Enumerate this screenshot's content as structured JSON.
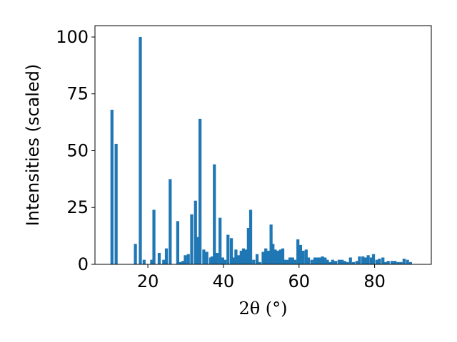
{
  "chart_data": {
    "type": "bar",
    "title": "",
    "xlabel": "2θ (°)",
    "ylabel": "Intensities (scaled)",
    "xlim": [
      6,
      95
    ],
    "ylim": [
      0,
      105
    ],
    "xticks": [
      20,
      40,
      60,
      80
    ],
    "yticks": [
      0,
      25,
      50,
      75,
      100
    ],
    "bar_color": "#1f77b4",
    "grid": false,
    "x": [
      10.5,
      11.6,
      16.7,
      18.0,
      19.0,
      21.0,
      21.6,
      23.0,
      24.2,
      24.9,
      25.9,
      27.9,
      28.7,
      29.3,
      29.9,
      30.7,
      31.6,
      32.6,
      33.1,
      33.8,
      34.8,
      35.6,
      36.6,
      37.0,
      37.6,
      38.3,
      39.1,
      39.8,
      40.4,
      41.2,
      42.1,
      42.7,
      43.3,
      44.1,
      44.7,
      45.3,
      45.9,
      46.6,
      47.2,
      48.0,
      48.9,
      49.6,
      50.5,
      51.2,
      51.9,
      52.6,
      53.1,
      53.7,
      54.4,
      55.1,
      55.7,
      56.3,
      56.9,
      57.6,
      58.3,
      58.9,
      59.7,
      60.4,
      61.1,
      61.9,
      62.5,
      63.4,
      64.2,
      64.9,
      65.5,
      66.2,
      66.9,
      67.5,
      68.2,
      68.9,
      69.7,
      70.6,
      71.4,
      72.1,
      72.8,
      73.6,
      74.4,
      75.3,
      76.0,
      76.9,
      77.6,
      78.3,
      79.1,
      79.7,
      80.6,
      81.3,
      82.2,
      82.9,
      83.6,
      84.6,
      85.4,
      86.2,
      87.0,
      87.8,
      88.7,
      89.5
    ],
    "values": [
      68,
      53,
      9,
      100,
      2,
      2,
      24,
      5,
      2,
      7,
      37.5,
      19,
      1,
      1.5,
      4,
      4.5,
      22,
      28,
      12,
      64,
      6.5,
      5.5,
      3,
      3.5,
      44,
      5,
      20.5,
      3,
      2,
      13,
      11.5,
      3,
      6.5,
      4,
      6,
      7,
      6.5,
      16,
      24,
      2,
      4.5,
      1,
      5.5,
      7,
      6,
      17.5,
      9,
      6.5,
      6,
      6.5,
      7,
      2,
      2,
      3,
      3,
      2,
      11,
      8.5,
      6,
      6.5,
      3,
      2,
      3,
      3,
      3,
      3.5,
      3,
      2,
      1,
      2,
      1.5,
      2,
      2,
      1.5,
      1,
      3,
      1,
      1.5,
      3.5,
      3.5,
      3,
      4,
      3,
      4.5,
      2,
      2.5,
      3,
      1,
      1.5,
      1.5,
      1.5,
      1,
      1,
      2.5,
      2,
      1
    ]
  }
}
